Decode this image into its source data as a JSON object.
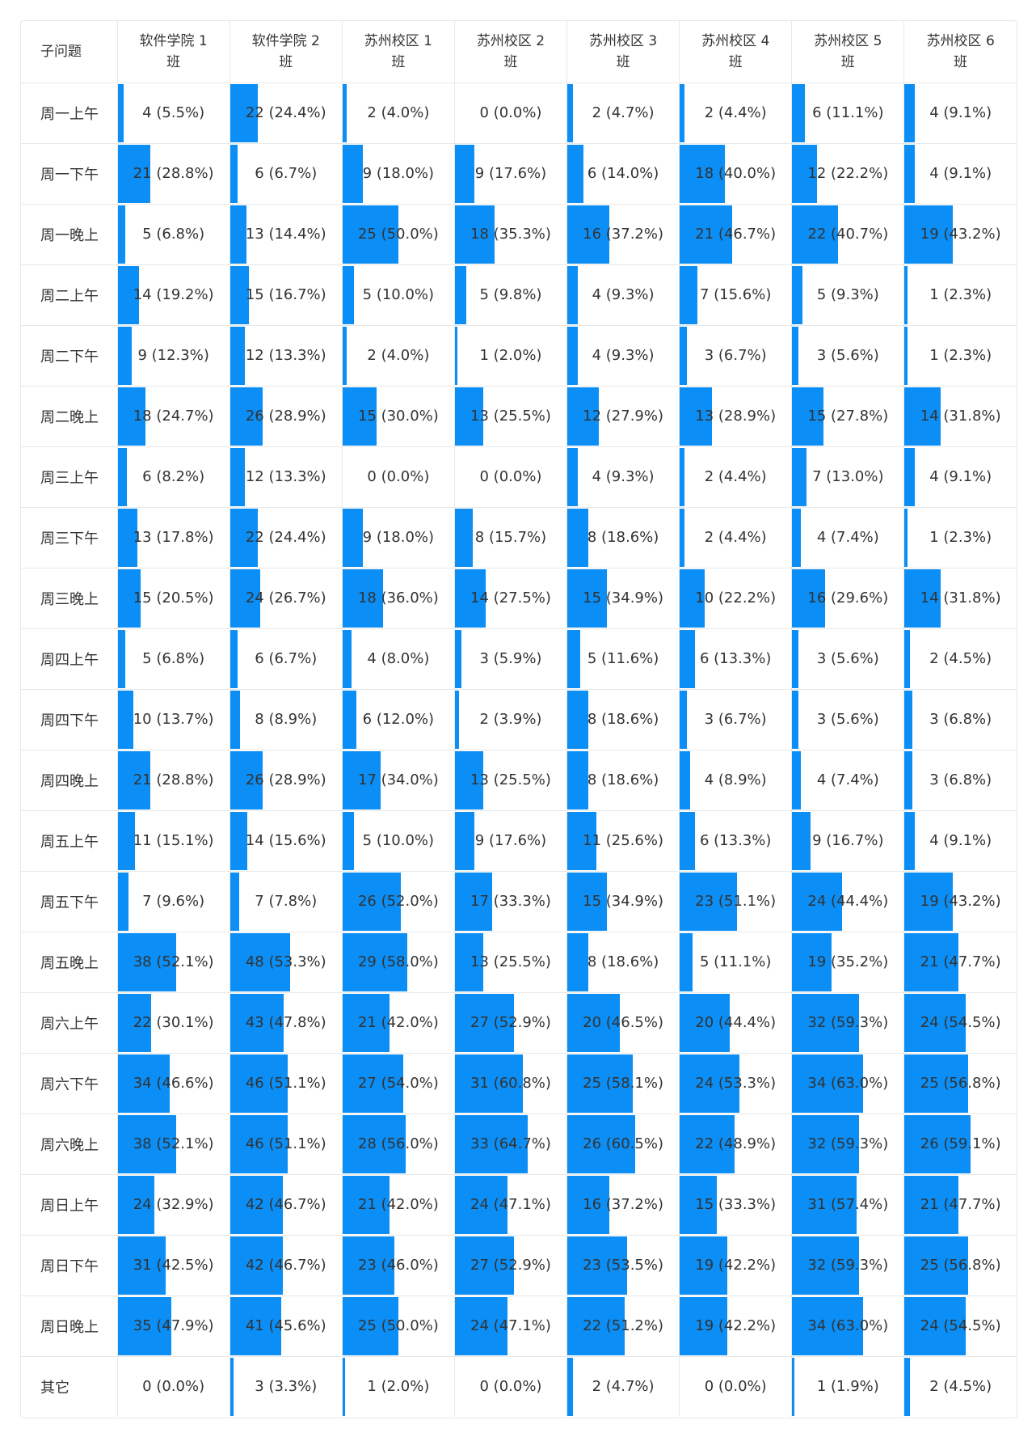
{
  "chart_data": {
    "type": "table",
    "corner_label": "子问题",
    "bar_color": "#0b8ef5",
    "columns": [
      "软件学院 1\n班",
      "软件学院 2\n班",
      "苏州校区 1\n班",
      "苏州校区 2\n班",
      "苏州校区 3\n班",
      "苏州校区 4\n班",
      "苏州校区 5\n班",
      "苏州校区 6\n班"
    ],
    "rows": [
      {
        "label": "周一上午",
        "counts": [
          4,
          22,
          2,
          0,
          2,
          2,
          6,
          4
        ],
        "percents": [
          "5.5%",
          "24.4%",
          "4.0%",
          "0.0%",
          "4.7%",
          "4.4%",
          "11.1%",
          "9.1%"
        ]
      },
      {
        "label": "周一下午",
        "counts": [
          21,
          6,
          9,
          9,
          6,
          18,
          12,
          4
        ],
        "percents": [
          "28.8%",
          "6.7%",
          "18.0%",
          "17.6%",
          "14.0%",
          "40.0%",
          "22.2%",
          "9.1%"
        ]
      },
      {
        "label": "周一晚上",
        "counts": [
          5,
          13,
          25,
          18,
          16,
          21,
          22,
          19
        ],
        "percents": [
          "6.8%",
          "14.4%",
          "50.0%",
          "35.3%",
          "37.2%",
          "46.7%",
          "40.7%",
          "43.2%"
        ]
      },
      {
        "label": "周二上午",
        "counts": [
          14,
          15,
          5,
          5,
          4,
          7,
          5,
          1
        ],
        "percents": [
          "19.2%",
          "16.7%",
          "10.0%",
          "9.8%",
          "9.3%",
          "15.6%",
          "9.3%",
          "2.3%"
        ]
      },
      {
        "label": "周二下午",
        "counts": [
          9,
          12,
          2,
          1,
          4,
          3,
          3,
          1
        ],
        "percents": [
          "12.3%",
          "13.3%",
          "4.0%",
          "2.0%",
          "9.3%",
          "6.7%",
          "5.6%",
          "2.3%"
        ]
      },
      {
        "label": "周二晚上",
        "counts": [
          18,
          26,
          15,
          13,
          12,
          13,
          15,
          14
        ],
        "percents": [
          "24.7%",
          "28.9%",
          "30.0%",
          "25.5%",
          "27.9%",
          "28.9%",
          "27.8%",
          "31.8%"
        ]
      },
      {
        "label": "周三上午",
        "counts": [
          6,
          12,
          0,
          0,
          4,
          2,
          7,
          4
        ],
        "percents": [
          "8.2%",
          "13.3%",
          "0.0%",
          "0.0%",
          "9.3%",
          "4.4%",
          "13.0%",
          "9.1%"
        ]
      },
      {
        "label": "周三下午",
        "counts": [
          13,
          22,
          9,
          8,
          8,
          2,
          4,
          1
        ],
        "percents": [
          "17.8%",
          "24.4%",
          "18.0%",
          "15.7%",
          "18.6%",
          "4.4%",
          "7.4%",
          "2.3%"
        ]
      },
      {
        "label": "周三晚上",
        "counts": [
          15,
          24,
          18,
          14,
          15,
          10,
          16,
          14
        ],
        "percents": [
          "20.5%",
          "26.7%",
          "36.0%",
          "27.5%",
          "34.9%",
          "22.2%",
          "29.6%",
          "31.8%"
        ]
      },
      {
        "label": "周四上午",
        "counts": [
          5,
          6,
          4,
          3,
          5,
          6,
          3,
          2
        ],
        "percents": [
          "6.8%",
          "6.7%",
          "8.0%",
          "5.9%",
          "11.6%",
          "13.3%",
          "5.6%",
          "4.5%"
        ]
      },
      {
        "label": "周四下午",
        "counts": [
          10,
          8,
          6,
          2,
          8,
          3,
          3,
          3
        ],
        "percents": [
          "13.7%",
          "8.9%",
          "12.0%",
          "3.9%",
          "18.6%",
          "6.7%",
          "5.6%",
          "6.8%"
        ]
      },
      {
        "label": "周四晚上",
        "counts": [
          21,
          26,
          17,
          13,
          8,
          4,
          4,
          3
        ],
        "percents": [
          "28.8%",
          "28.9%",
          "34.0%",
          "25.5%",
          "18.6%",
          "8.9%",
          "7.4%",
          "6.8%"
        ]
      },
      {
        "label": "周五上午",
        "counts": [
          11,
          14,
          5,
          9,
          11,
          6,
          9,
          4
        ],
        "percents": [
          "15.1%",
          "15.6%",
          "10.0%",
          "17.6%",
          "25.6%",
          "13.3%",
          "16.7%",
          "9.1%"
        ]
      },
      {
        "label": "周五下午",
        "counts": [
          7,
          7,
          26,
          17,
          15,
          23,
          24,
          19
        ],
        "percents": [
          "9.6%",
          "7.8%",
          "52.0%",
          "33.3%",
          "34.9%",
          "51.1%",
          "44.4%",
          "43.2%"
        ]
      },
      {
        "label": "周五晚上",
        "counts": [
          38,
          48,
          29,
          13,
          8,
          5,
          19,
          21
        ],
        "percents": [
          "52.1%",
          "53.3%",
          "58.0%",
          "25.5%",
          "18.6%",
          "11.1%",
          "35.2%",
          "47.7%"
        ]
      },
      {
        "label": "周六上午",
        "counts": [
          22,
          43,
          21,
          27,
          20,
          20,
          32,
          24
        ],
        "percents": [
          "30.1%",
          "47.8%",
          "42.0%",
          "52.9%",
          "46.5%",
          "44.4%",
          "59.3%",
          "54.5%"
        ]
      },
      {
        "label": "周六下午",
        "counts": [
          34,
          46,
          27,
          31,
          25,
          24,
          34,
          25
        ],
        "percents": [
          "46.6%",
          "51.1%",
          "54.0%",
          "60.8%",
          "58.1%",
          "53.3%",
          "63.0%",
          "56.8%"
        ]
      },
      {
        "label": "周六晚上",
        "counts": [
          38,
          46,
          28,
          33,
          26,
          22,
          32,
          26
        ],
        "percents": [
          "52.1%",
          "51.1%",
          "56.0%",
          "64.7%",
          "60.5%",
          "48.9%",
          "59.3%",
          "59.1%"
        ]
      },
      {
        "label": "周日上午",
        "counts": [
          24,
          42,
          21,
          24,
          16,
          15,
          31,
          21
        ],
        "percents": [
          "32.9%",
          "46.7%",
          "42.0%",
          "47.1%",
          "37.2%",
          "33.3%",
          "57.4%",
          "47.7%"
        ]
      },
      {
        "label": "周日下午",
        "counts": [
          31,
          42,
          23,
          27,
          23,
          19,
          32,
          25
        ],
        "percents": [
          "42.5%",
          "46.7%",
          "46.0%",
          "52.9%",
          "53.5%",
          "42.2%",
          "59.3%",
          "56.8%"
        ]
      },
      {
        "label": "周日晚上",
        "counts": [
          35,
          41,
          25,
          24,
          22,
          19,
          34,
          24
        ],
        "percents": [
          "47.9%",
          "45.6%",
          "50.0%",
          "47.1%",
          "51.2%",
          "42.2%",
          "63.0%",
          "54.5%"
        ]
      },
      {
        "label": "其它",
        "counts": [
          0,
          3,
          1,
          0,
          2,
          0,
          1,
          2
        ],
        "percents": [
          "0.0%",
          "3.3%",
          "2.0%",
          "0.0%",
          "4.7%",
          "0.0%",
          "1.9%",
          "4.5%"
        ]
      }
    ]
  }
}
